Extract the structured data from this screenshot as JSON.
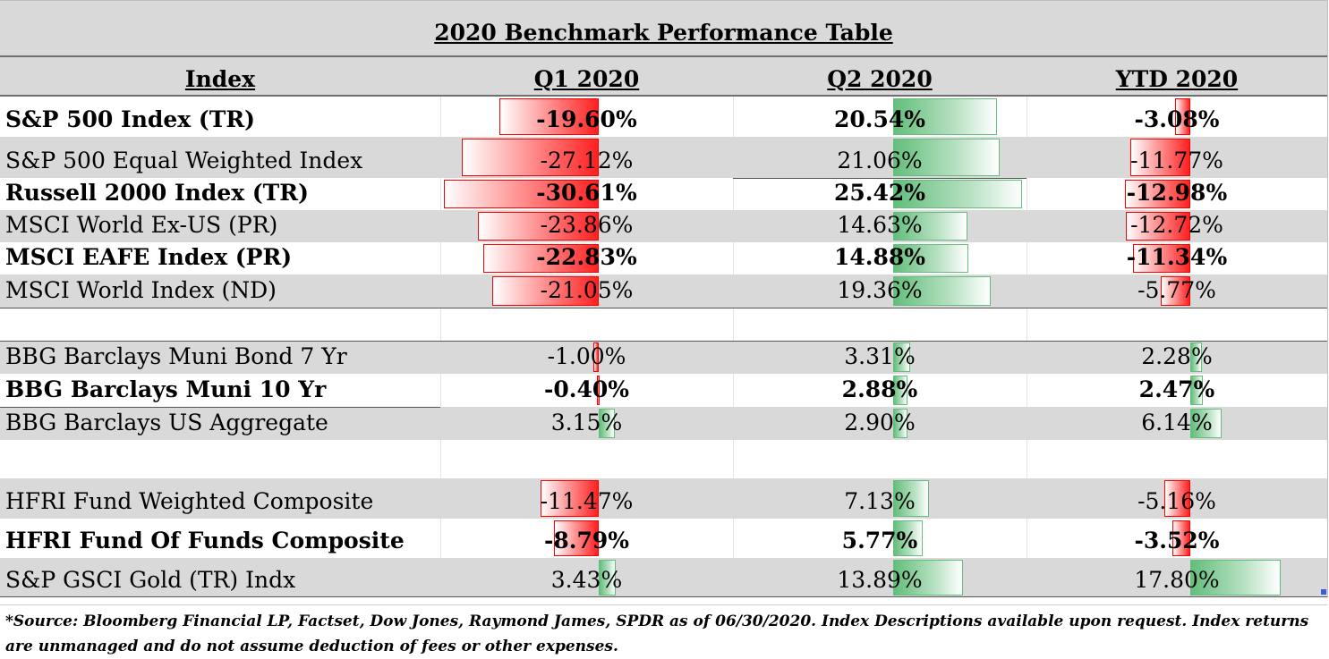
{
  "chart_data": {
    "type": "table",
    "title": "2020 Benchmark Performance Table",
    "columns": [
      "Index",
      "Q1 2020",
      "Q2 2020",
      "YTD 2020"
    ],
    "rows": [
      {
        "label": "S&P 500 Index (TR)",
        "bold": true,
        "values": [
          "-19.60%",
          "20.54%",
          "-3.08%"
        ],
        "nums": [
          -19.6,
          20.54,
          -3.08
        ]
      },
      {
        "label": "S&P 500 Equal Weighted Index",
        "bold": false,
        "values": [
          "-27.12%",
          "21.06%",
          "-11.77%"
        ],
        "nums": [
          -27.12,
          21.06,
          -11.77
        ]
      },
      {
        "label": "Russell 2000 Index (TR)",
        "bold": true,
        "values": [
          "-30.61%",
          "25.42%",
          "-12.98%"
        ],
        "nums": [
          -30.61,
          25.42,
          -12.98
        ]
      },
      {
        "label": "MSCI World Ex-US (PR)",
        "bold": false,
        "values": [
          "-23.86%",
          "14.63%",
          "-12.72%"
        ],
        "nums": [
          -23.86,
          14.63,
          -12.72
        ]
      },
      {
        "label": "MSCI EAFE Index (PR)",
        "bold": true,
        "values": [
          "-22.83%",
          "14.88%",
          "-11.34%"
        ],
        "nums": [
          -22.83,
          14.88,
          -11.34
        ]
      },
      {
        "label": "MSCI World Index (ND)",
        "bold": false,
        "values": [
          "-21.05%",
          "19.36%",
          "-5.77%"
        ],
        "nums": [
          -21.05,
          19.36,
          -5.77
        ]
      },
      {
        "label": "",
        "bold": false,
        "values": [
          "",
          "",
          ""
        ],
        "nums": [
          null,
          null,
          null
        ]
      },
      {
        "label": "BBG Barclays Muni Bond 7 Yr",
        "bold": false,
        "values": [
          "-1.00%",
          "3.31%",
          "2.28%"
        ],
        "nums": [
          -1.0,
          3.31,
          2.28
        ]
      },
      {
        "label": "BBG Barclays Muni 10 Yr",
        "bold": true,
        "values": [
          "-0.40%",
          "2.88%",
          "2.47%"
        ],
        "nums": [
          -0.4,
          2.88,
          2.47
        ]
      },
      {
        "label": "BBG Barclays US Aggregate",
        "bold": false,
        "values": [
          "3.15%",
          "2.90%",
          "6.14%"
        ],
        "nums": [
          3.15,
          2.9,
          6.14
        ]
      },
      {
        "label": "",
        "bold": false,
        "values": [
          "",
          "",
          ""
        ],
        "nums": [
          null,
          null,
          null
        ]
      },
      {
        "label": "HFRI Fund Weighted Composite",
        "bold": false,
        "values": [
          "-11.47%",
          "7.13%",
          "-5.16%"
        ],
        "nums": [
          -11.47,
          7.13,
          -5.16
        ]
      },
      {
        "label": "HFRI Fund Of Funds Composite",
        "bold": true,
        "values": [
          "-8.79%",
          "5.77%",
          "-3.52%"
        ],
        "nums": [
          -8.79,
          5.77,
          -3.52
        ]
      },
      {
        "label": "S&P GSCI Gold (TR) Indx",
        "bold": false,
        "values": [
          "3.43%",
          "13.89%",
          "17.80%"
        ],
        "nums": [
          3.43,
          13.89,
          17.8
        ]
      }
    ],
    "negative_color": "#ff0000",
    "positive_color": "#63be7b",
    "footnote": "*Source: Bloomberg Financial LP, Factset, Dow Jones, Raymond James, SPDR  as of 06/30/2020. Index Descriptions available upon request. Index returns are unmanaged and do not assume deduction of fees or other expenses."
  }
}
